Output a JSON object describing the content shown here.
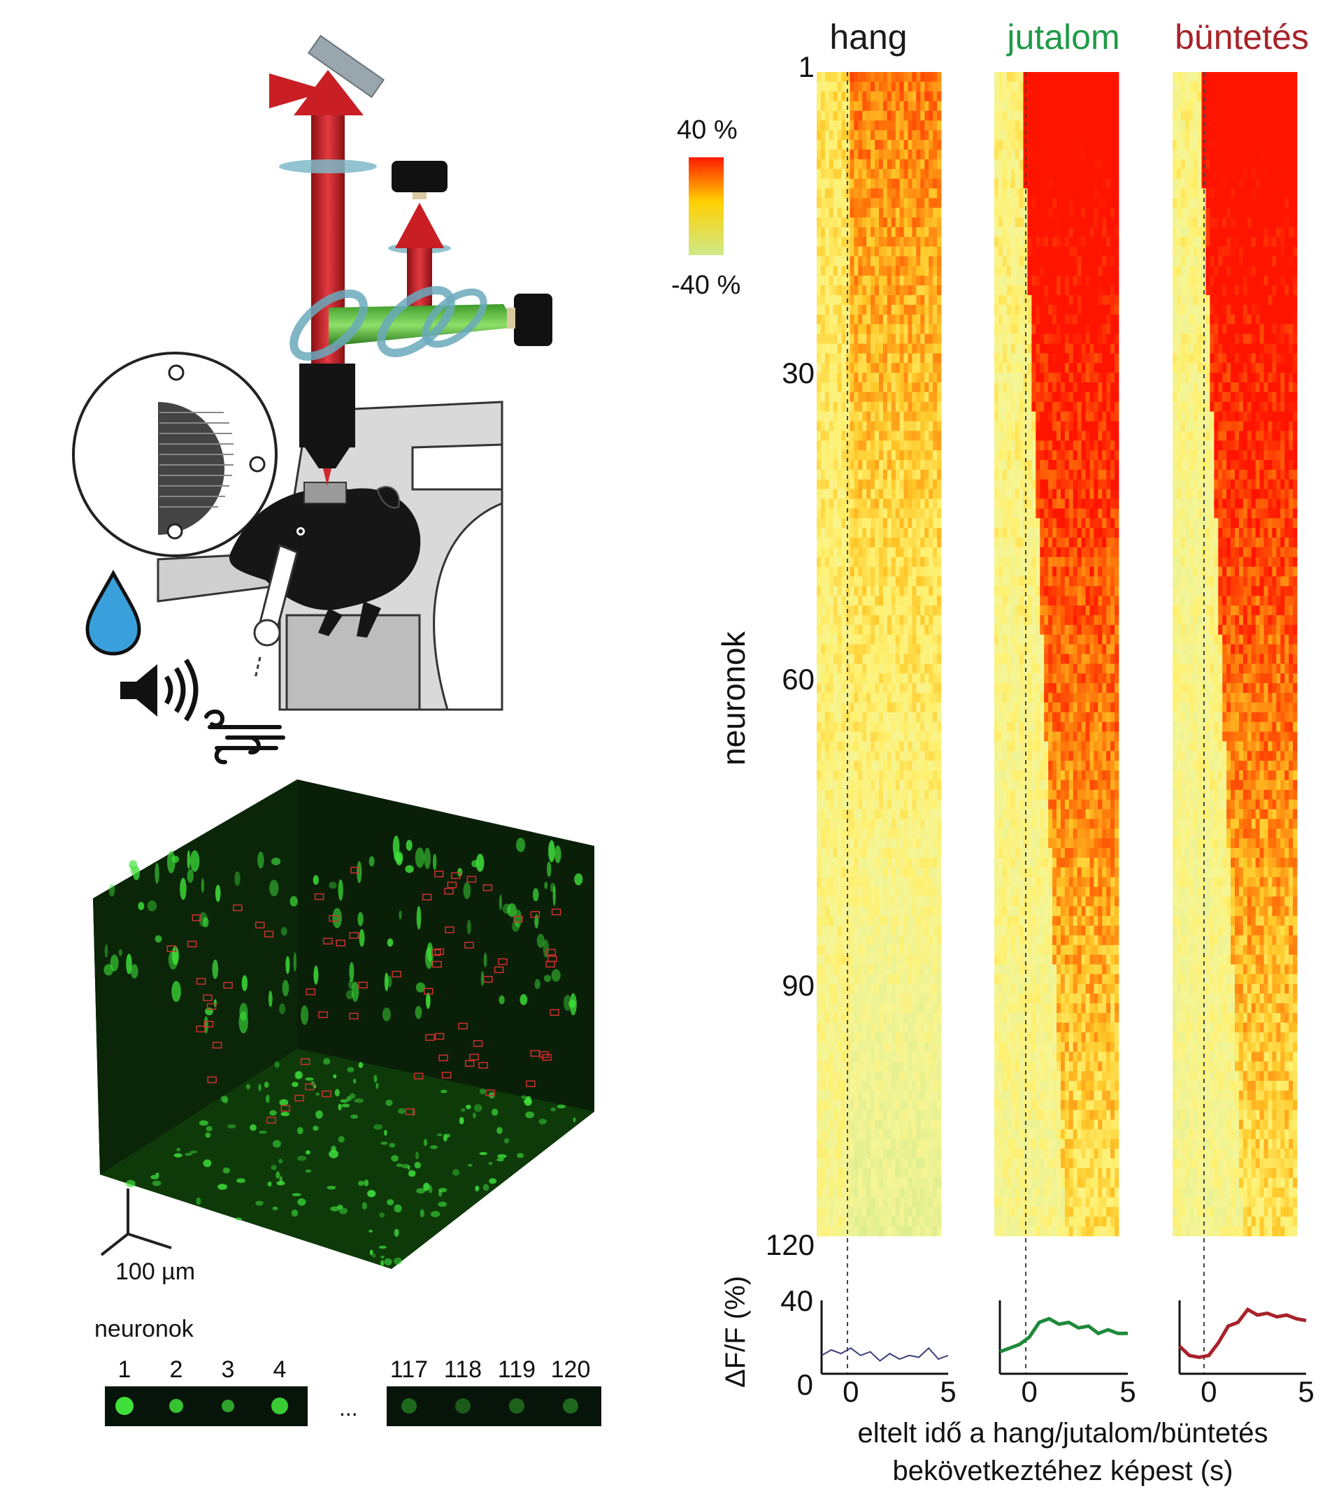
{
  "colorbar": {
    "max_label": "40 %",
    "min_label": "-40 %"
  },
  "scalebar_label": "100 µm",
  "neurons_strip": {
    "title": "neuronok",
    "left_numbers": [
      "1",
      "2",
      "3",
      "4"
    ],
    "ellipsis": "...",
    "right_numbers": [
      "117",
      "118",
      "119",
      "120"
    ]
  },
  "heatmap": {
    "ylabel": "neuronok",
    "yticks": [
      "1",
      "30",
      "60",
      "90",
      "120"
    ],
    "panels": [
      {
        "title": "hang",
        "color": "#1a1a1a"
      },
      {
        "title": "jutalom",
        "color": "#1f9a47"
      },
      {
        "title": "büntetés",
        "color": "#a8232a"
      }
    ]
  },
  "chart_data": {
    "type": "line",
    "ylabel": "ΔF/F (%)",
    "ylim": [
      0,
      40
    ],
    "yticks": [
      "0",
      "40"
    ],
    "xlim": [
      -1.5,
      5
    ],
    "xticks": [
      "0",
      "5"
    ],
    "xlabel_line1": "eltelt idő a hang/jutalom/büntetés",
    "xlabel_line2": "bekövetkeztéhez képest (s)",
    "series": [
      {
        "name": "hang",
        "color": "#3b3f78",
        "x": [
          -1.5,
          -1.0,
          -0.5,
          0,
          0.5,
          1.0,
          1.5,
          2.0,
          2.5,
          3.0,
          3.5,
          4.0,
          4.5,
          5.0
        ],
        "y": [
          10,
          13,
          11,
          14,
          10,
          12,
          7,
          11,
          8,
          10,
          9,
          14,
          8,
          10
        ]
      },
      {
        "name": "jutalom",
        "color": "#1f8a3a",
        "x": [
          -1.5,
          -1.0,
          -0.5,
          0,
          0.5,
          1.0,
          1.5,
          2.0,
          2.5,
          3.0,
          3.5,
          4.0,
          4.5,
          5.0
        ],
        "y": [
          12,
          14,
          16,
          20,
          28,
          30,
          27,
          28,
          25,
          26,
          22,
          24,
          22,
          22
        ]
      },
      {
        "name": "büntetés",
        "color": "#a8232a",
        "x": [
          -1.5,
          -1.0,
          -0.5,
          0,
          0.5,
          1.0,
          1.5,
          2.0,
          2.5,
          3.0,
          3.5,
          4.0,
          4.5,
          5.0
        ],
        "y": [
          15,
          10,
          9,
          10,
          17,
          26,
          28,
          35,
          32,
          33,
          31,
          32,
          30,
          29
        ]
      }
    ]
  }
}
